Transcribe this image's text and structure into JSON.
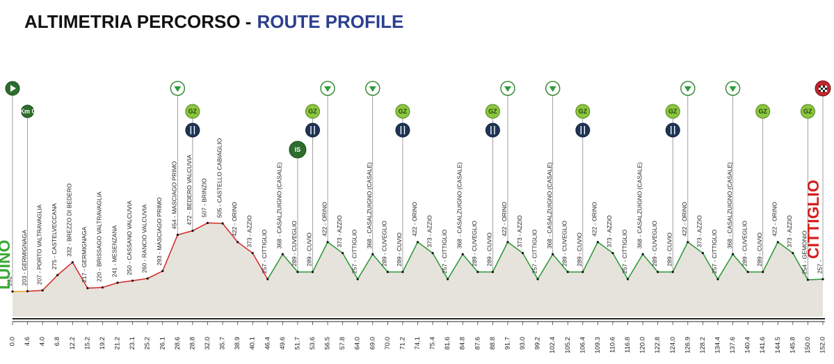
{
  "chart_data": {
    "type": "profile",
    "title": "ALTIMETRIA PERCORSO -",
    "subtitle": "ROUTE PROFILE",
    "start_name": "LUINO",
    "finish_name": "CITTIGLIO",
    "categories": [
      "0.0",
      "4.6",
      "4.0",
      "6.8",
      "12.2",
      "15.2",
      "19.2",
      "21.2",
      "23.1",
      "25.2",
      "26.1",
      "28.6",
      "28.8",
      "32.0",
      "35.7",
      "38.9",
      "40.1",
      "46.4",
      "49.6",
      "51.7",
      "53.6",
      "56.5",
      "57.8",
      "64.0",
      "69.0",
      "70.0",
      "71.2",
      "74.1",
      "75.4",
      "81.6",
      "84.8",
      "87.6",
      "88.8",
      "91.7",
      "93.0",
      "99.2",
      "102.4",
      "105.2",
      "106.4",
      "109.3",
      "110.6",
      "116.8",
      "120.0",
      "122.8",
      "124.0",
      "126.9",
      "128.2",
      "134.4",
      "137.6",
      "140.4",
      "141.6",
      "144.5",
      "145.8",
      "150.0",
      "152.0"
    ],
    "values": [
      202,
      203,
      207,
      275,
      332,
      217,
      220,
      241,
      250,
      260,
      293,
      454,
      472,
      507,
      505,
      422,
      373,
      257,
      368,
      289,
      289,
      422,
      373,
      257,
      368,
      289,
      289,
      422,
      373,
      257,
      368,
      289,
      289,
      422,
      373,
      257,
      368,
      289,
      289,
      422,
      373,
      257,
      368,
      289,
      289,
      422,
      373,
      257,
      368,
      289,
      289,
      422,
      373,
      254,
      257
    ],
    "value_labels": [
      "202 -",
      "203 - GERMIGNAGA",
      "207 - PORTO VALTRAVAGLIA",
      "275 - CASTELVECCANA",
      "332 - BREZZO DI BEDERO",
      "217 - GERMIGNAGA",
      "220 - BRISSAGO VALTRAVAGLIA",
      "241 - MESENZANA",
      "250 - CASSANO VALCUVIA",
      "260 - RANCIO VALCUVIA",
      "293 - MASCIAGO PRIMO",
      "454 - MASCIAGO PRIMO",
      "472 - BEDERO VALCUVIA",
      "507 - BRINZIO",
      "505 - CASTELLO CABIAGLIO",
      "422 - ORINO",
      "373 - AZZIO",
      "257 - CITTIGLIO",
      "368 - CASALZUIGNO (CASALE)",
      "289 - CUVEGLIO",
      "289 - CUVIO",
      "422 - ORINO",
      "373 - AZZIO",
      "257 - CITTIGLIO",
      "368 - CASALZUIGNO (CASALE)",
      "289 - CUVEGLIO",
      "289 - CUVIO",
      "422 - ORINO",
      "373 - AZZIO",
      "257 - CITTIGLIO",
      "368 - CASALZUIGNO (CASALE)",
      "289 - CUVEGLIO",
      "289 - CUVIO",
      "422 - ORINO",
      "373 - AZZIO",
      "257 - CITTIGLIO",
      "368 - CASALZUIGNO (CASALE)",
      "289 - CUVEGLIO",
      "289 - CUVIO",
      "422 - ORINO",
      "373 - AZZIO",
      "257 - CITTIGLIO",
      "368 - CASALZUIGNO (CASALE)",
      "289 - CUVEGLIO",
      "289 - CUVIO",
      "422 - ORINO",
      "373 - AZZIO",
      "257 - CITTIGLIO",
      "368 - CASALZUIGNO (CASALE)",
      "289 - CUVEGLIO",
      "289 - CUVIO",
      "422 - ORINO",
      "373 - AZZIO",
      "254 - GEMONIO",
      "257 -"
    ],
    "segment_colors": [
      "#f5a623",
      "#d42e2e",
      "#d42e2e",
      "#d42e2e",
      "#d42e2e",
      "#d42e2e",
      "#d42e2e",
      "#d42e2e",
      "#d42e2e",
      "#d42e2e",
      "#d42e2e",
      "#d42e2e",
      "#d42e2e",
      "#d42e2e",
      "#d42e2e",
      "#d42e2e",
      "#d42e2e",
      "#2e9b3a",
      "#2e9b3a",
      "#2e9b3a",
      "#2e9b3a",
      "#2e9b3a",
      "#2e9b3a",
      "#2e9b3a",
      "#2e9b3a",
      "#2e9b3a",
      "#2e9b3a",
      "#2e9b3a",
      "#2e9b3a",
      "#2e9b3a",
      "#2e9b3a",
      "#2e9b3a",
      "#2e9b3a",
      "#2e9b3a",
      "#2e9b3a",
      "#2e9b3a",
      "#2e9b3a",
      "#2e9b3a",
      "#2e9b3a",
      "#2e9b3a",
      "#2e9b3a",
      "#2e9b3a",
      "#2e9b3a",
      "#2e9b3a",
      "#2e9b3a",
      "#2e9b3a",
      "#2e9b3a",
      "#2e9b3a",
      "#2e9b3a",
      "#2e9b3a",
      "#2e9b3a",
      "#2e9b3a",
      "#2e9b3a",
      "#2e9b3a",
      "#2e9b3a"
    ],
    "fill_color": "#e6e3dc",
    "ylim": [
      90,
      570
    ],
    "top_icons": [
      {
        "km": "0.0",
        "type": "start"
      },
      {
        "km": "28.6",
        "type": "sprint"
      },
      {
        "km": "56.5",
        "type": "sprint"
      },
      {
        "km": "69.0",
        "type": "sprint"
      },
      {
        "km": "91.7",
        "type": "sprint"
      },
      {
        "km": "102.4",
        "type": "sprint"
      },
      {
        "km": "126.9",
        "type": "sprint"
      },
      {
        "km": "137.6",
        "type": "sprint"
      },
      {
        "km": "152.0",
        "type": "finish"
      }
    ],
    "badges": [
      {
        "km": "4.6",
        "label": "Km 0"
      },
      {
        "km": "28.8",
        "label": "GZ"
      },
      {
        "km": "53.6",
        "label": "GZ"
      },
      {
        "km": "71.2",
        "label": "GZ"
      },
      {
        "km": "88.8",
        "label": "GZ"
      },
      {
        "km": "106.4",
        "label": "GZ"
      },
      {
        "km": "124.0",
        "label": "GZ"
      },
      {
        "km": "141.6",
        "label": "GZ"
      },
      {
        "km": "150.0",
        "label": "GZ"
      },
      {
        "km": "51.7",
        "label": "IS"
      }
    ],
    "food": [
      "28.8",
      "53.6",
      "71.2",
      "88.8",
      "106.4",
      "124.0"
    ]
  }
}
